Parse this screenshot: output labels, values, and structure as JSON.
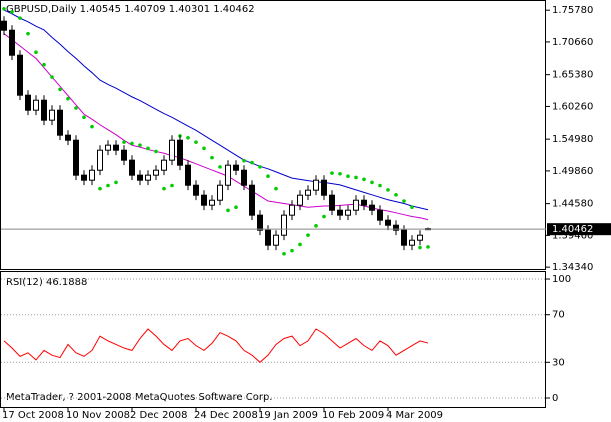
{
  "chart_data": [
    {
      "type": "candlestick",
      "title": "GBPUSD,Daily  1.40545 1.40709 1.40301 1.40462",
      "categories": [
        "17 Oct 2008",
        null,
        null,
        null,
        null,
        null,
        null,
        null,
        "10 Nov 2008",
        null,
        null,
        null,
        null,
        null,
        null,
        null,
        "2 Dec 2008",
        null,
        null,
        null,
        null,
        null,
        null,
        null,
        "24 Dec 2008",
        null,
        null,
        null,
        null,
        null,
        null,
        null,
        "19 Jan 2009",
        null,
        null,
        null,
        null,
        null,
        null,
        null,
        "10 Feb 2009",
        null,
        null,
        null,
        null,
        null,
        null,
        null,
        "4 Mar 2009",
        null,
        null,
        null,
        null,
        null
      ],
      "open": [
        1.74,
        1.7255,
        1.6852,
        1.6207,
        1.5965,
        1.6126,
        1.5804,
        1.5965,
        1.5562,
        1.5481,
        1.4917,
        1.4836,
        1.4997,
        1.532,
        1.5401,
        1.532,
        1.5159,
        1.4917,
        1.4836,
        1.4917,
        1.4997,
        1.5159,
        1.5481,
        1.5078,
        1.4755,
        1.4594,
        1.4433,
        1.4513,
        1.4755,
        1.5078,
        1.4997,
        1.4755,
        1.4272,
        1.403,
        1.3788,
        1.3949,
        1.4272,
        1.4433,
        1.4594,
        1.4675,
        1.4836,
        1.4594,
        1.4352,
        1.4272,
        1.4352,
        1.4513,
        1.4433,
        1.4352,
        1.4191,
        1.411,
        1.403,
        1.3788,
        1.3868,
        1.40545
      ],
      "high": [
        1.748,
        1.7335,
        1.6932,
        1.6287,
        1.6206,
        1.6206,
        1.6045,
        1.6045,
        1.5642,
        1.5561,
        1.4997,
        1.5077,
        1.54,
        1.5481,
        1.5481,
        1.54,
        1.5239,
        1.4997,
        1.4997,
        1.5077,
        1.5239,
        1.5561,
        1.5561,
        1.5158,
        1.4835,
        1.4674,
        1.4593,
        1.4835,
        1.5158,
        1.5158,
        1.5077,
        1.4835,
        1.4352,
        1.411,
        1.4029,
        1.4352,
        1.4513,
        1.4674,
        1.4755,
        1.4916,
        1.4916,
        1.4674,
        1.4432,
        1.4432,
        1.4593,
        1.4593,
        1.4513,
        1.4432,
        1.4271,
        1.419,
        1.411,
        1.3948,
        1.4029,
        1.40709
      ],
      "low": [
        1.7175,
        1.6772,
        1.6127,
        1.5885,
        1.5885,
        1.5724,
        1.5724,
        1.5482,
        1.5401,
        1.4837,
        1.4756,
        1.4756,
        1.4917,
        1.524,
        1.524,
        1.5079,
        1.4837,
        1.4756,
        1.4756,
        1.4837,
        1.4917,
        1.5079,
        1.4998,
        1.4675,
        1.4514,
        1.4353,
        1.4353,
        1.4433,
        1.4675,
        1.4917,
        1.4675,
        1.4192,
        1.395,
        1.3708,
        1.3708,
        1.3869,
        1.4192,
        1.4353,
        1.4514,
        1.4595,
        1.4514,
        1.4272,
        1.4192,
        1.4192,
        1.4272,
        1.4353,
        1.4272,
        1.4111,
        1.403,
        1.395,
        1.3708,
        1.3708,
        1.3788,
        1.40301
      ],
      "close": [
        1.7255,
        1.6852,
        1.6207,
        1.5965,
        1.6126,
        1.5804,
        1.5965,
        1.5562,
        1.5481,
        1.4917,
        1.4836,
        1.4997,
        1.532,
        1.5401,
        1.532,
        1.5159,
        1.4917,
        1.4836,
        1.4917,
        1.4997,
        1.5159,
        1.5481,
        1.5078,
        1.4755,
        1.4594,
        1.4433,
        1.4513,
        1.4755,
        1.5078,
        1.4997,
        1.4755,
        1.4272,
        1.403,
        1.3788,
        1.3949,
        1.4272,
        1.4433,
        1.4594,
        1.4675,
        1.4836,
        1.4594,
        1.4352,
        1.4272,
        1.4352,
        1.4513,
        1.4433,
        1.4352,
        1.4191,
        1.411,
        1.403,
        1.3788,
        1.3868,
        1.3949,
        1.40462
      ],
      "series": [
        {
          "style": "line",
          "color": "#0000cc",
          "values": [
            1.758,
            1.752,
            1.745,
            1.739,
            1.732,
            1.726,
            1.714,
            1.703,
            1.691,
            1.68,
            1.668,
            1.657,
            1.645,
            1.638,
            1.632,
            1.625,
            1.618,
            1.612,
            1.605,
            1.598,
            1.591,
            1.585,
            1.578,
            1.571,
            1.564,
            1.556,
            1.548,
            1.54,
            1.532,
            1.524,
            1.516,
            1.511,
            1.506,
            1.502,
            1.497,
            1.492,
            1.487,
            1.485,
            1.483,
            1.481,
            1.48,
            1.478,
            1.476,
            1.472,
            1.468,
            1.464,
            1.46,
            1.456,
            1.452,
            1.449,
            1.446,
            1.442,
            1.439,
            1.436
          ]
        },
        {
          "style": "line",
          "color": "#cc00cc",
          "values": [
            1.72,
            1.71,
            1.7,
            1.69,
            1.68,
            1.665,
            1.65,
            1.635,
            1.62,
            1.605,
            1.59,
            1.582,
            1.573,
            1.565,
            1.557,
            1.548,
            1.54,
            1.537,
            1.533,
            1.53,
            1.527,
            1.523,
            1.52,
            1.515,
            1.51,
            1.505,
            1.5,
            1.495,
            1.49,
            1.482,
            1.474,
            1.466,
            1.458,
            1.45,
            1.448,
            1.446,
            1.444,
            1.442,
            1.44,
            1.441,
            1.442,
            1.442,
            1.443,
            1.444,
            1.445,
            1.442,
            1.439,
            1.436,
            1.434,
            1.431,
            1.428,
            1.425,
            1.423,
            1.42
          ]
        },
        {
          "style": "dots",
          "color": "#00cc00",
          "values": [
            1.76,
            1.755,
            1.745,
            1.72,
            1.69,
            1.67,
            1.65,
            1.63,
            1.615,
            1.6,
            1.585,
            1.57,
            1.47,
            1.475,
            1.48,
            1.545,
            1.543,
            1.54,
            1.535,
            1.53,
            1.47,
            1.475,
            1.555,
            1.552,
            1.545,
            1.535,
            1.52,
            1.505,
            1.435,
            1.44,
            1.515,
            1.512,
            1.505,
            1.49,
            1.47,
            1.365,
            1.37,
            1.38,
            1.395,
            1.41,
            1.425,
            1.495,
            1.494,
            1.49,
            1.488,
            1.485,
            1.48,
            1.475,
            1.468,
            1.46,
            1.45,
            1.44,
            1.375,
            1.376
          ]
        }
      ],
      "last_price": 1.40462,
      "ylim": [
        1.342,
        1.771
      ],
      "yticks": [
        {
          "value": 1.7578,
          "label": "1.75780"
        },
        {
          "value": 1.7066,
          "label": "1.70660"
        },
        {
          "value": 1.6538,
          "label": "1.65380"
        },
        {
          "value": 1.6026,
          "label": "1.60260"
        },
        {
          "value": 1.5498,
          "label": "1.54980"
        },
        {
          "value": 1.4986,
          "label": "1.49860"
        },
        {
          "value": 1.4458,
          "label": "1.44580"
        },
        {
          "value": 1.3946,
          "label": "1.39460"
        },
        {
          "value": 1.3434,
          "label": "1.34340"
        }
      ]
    },
    {
      "type": "line",
      "title": "RSI(12) 46.1888",
      "footer": "MetaTrader, ? 2001-2008 MetaQuotes Software Corp.",
      "color": "#ff0000",
      "values": [
        48,
        42,
        35,
        38,
        32,
        40,
        36,
        34,
        45,
        38,
        35,
        40,
        52,
        48,
        45,
        42,
        40,
        50,
        58,
        52,
        45,
        40,
        48,
        50,
        44,
        40,
        46,
        55,
        52,
        48,
        40,
        36,
        30,
        36,
        45,
        50,
        52,
        44,
        48,
        58,
        54,
        48,
        42,
        46,
        50,
        44,
        40,
        48,
        44,
        36,
        40,
        44,
        48,
        46.1888
      ],
      "ylim": [
        -8.4,
        105.9
      ],
      "yticks": [
        100,
        70,
        30,
        0
      ]
    }
  ]
}
